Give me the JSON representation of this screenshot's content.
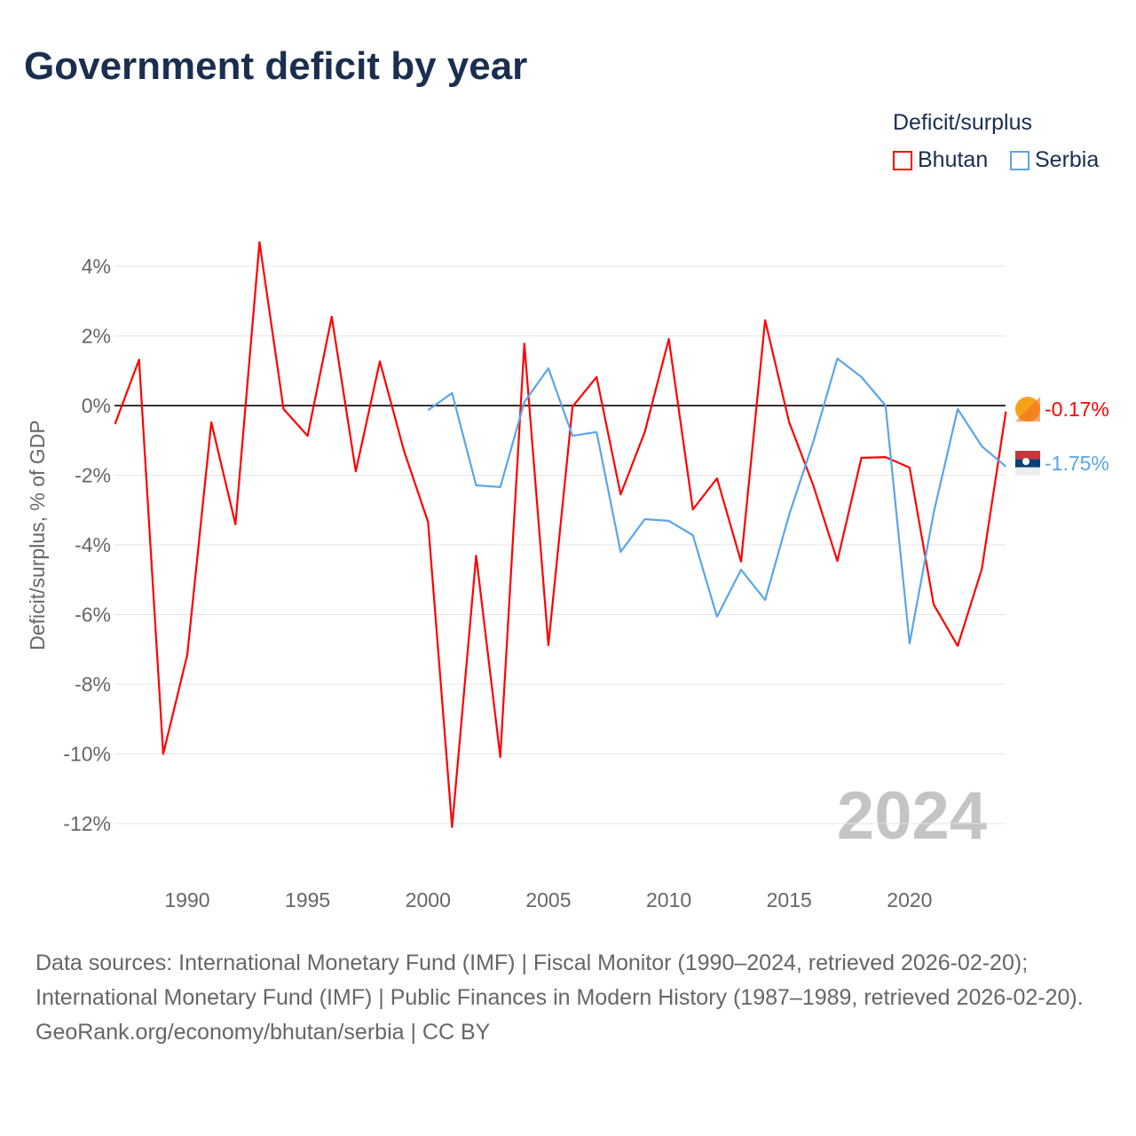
{
  "chart_data": {
    "type": "line",
    "title": "Government deficit by year",
    "ylabel": "Deficit/surplus, % of GDP",
    "xlabel": "",
    "xlim": [
      1987,
      2024
    ],
    "ylim": [
      -13,
      5
    ],
    "x_ticks": [
      1990,
      1995,
      2000,
      2005,
      2010,
      2015,
      2020
    ],
    "y_ticks": [
      4,
      2,
      0,
      -2,
      -4,
      -6,
      -8,
      -10,
      -12
    ],
    "y_tick_labels": [
      "4%",
      "2%",
      "0%",
      "-2%",
      "-4%",
      "-6%",
      "-8%",
      "-10%",
      "-12%"
    ],
    "grid": true,
    "legend_title": "Deficit/surplus",
    "legend_position": "top-right",
    "watermark_year": "2024",
    "series": [
      {
        "name": "Bhutan",
        "color": "#ff0000",
        "end_label": "-0.17%",
        "x": [
          1987,
          1988,
          1989,
          1990,
          1991,
          1992,
          1993,
          1994,
          1995,
          1996,
          1997,
          1998,
          1999,
          2000,
          2001,
          2002,
          2003,
          2004,
          2005,
          2006,
          2007,
          2008,
          2009,
          2010,
          2011,
          2012,
          2013,
          2014,
          2015,
          2016,
          2017,
          2018,
          2019,
          2020,
          2021,
          2022,
          2023,
          2024
        ],
        "values": [
          -0.53,
          1.32,
          -10.0,
          -7.16,
          -0.48,
          -3.41,
          4.69,
          -0.1,
          -0.87,
          2.55,
          -1.89,
          1.27,
          -1.3,
          -3.34,
          -12.1,
          -4.31,
          -10.09,
          1.78,
          -6.88,
          -0.03,
          0.82,
          -2.55,
          -0.76,
          1.91,
          -2.98,
          -2.09,
          -4.48,
          2.45,
          -0.48,
          -2.29,
          -4.46,
          -1.5,
          -1.48,
          -1.78,
          -5.71,
          -6.9,
          -4.69,
          -0.17
        ]
      },
      {
        "name": "Serbia",
        "color": "#5aa5e8",
        "end_label": "-1.75%",
        "x": [
          2000,
          2001,
          2002,
          2003,
          2004,
          2005,
          2006,
          2007,
          2008,
          2009,
          2010,
          2011,
          2012,
          2013,
          2014,
          2015,
          2016,
          2017,
          2018,
          2019,
          2020,
          2021,
          2022,
          2023,
          2024
        ],
        "values": [
          -0.13,
          0.36,
          -2.29,
          -2.34,
          0.1,
          1.07,
          -0.87,
          -0.76,
          -4.2,
          -3.26,
          -3.31,
          -3.72,
          -6.06,
          -4.71,
          -5.58,
          -3.13,
          -1.04,
          1.35,
          0.82,
          0.0,
          -6.83,
          -3.08,
          -0.1,
          -1.17,
          -1.75
        ]
      }
    ]
  },
  "footer": {
    "sources": "Data sources: International Monetary Fund (IMF) | Fiscal Monitor (1990–2024, retrieved 2026-02-20); International Monetary Fund (IMF) | Public Finances in Modern History (1987–1989, retrieved 2026-02-20).",
    "credit": "GeoRank.org/economy/bhutan/serbia | CC BY"
  }
}
